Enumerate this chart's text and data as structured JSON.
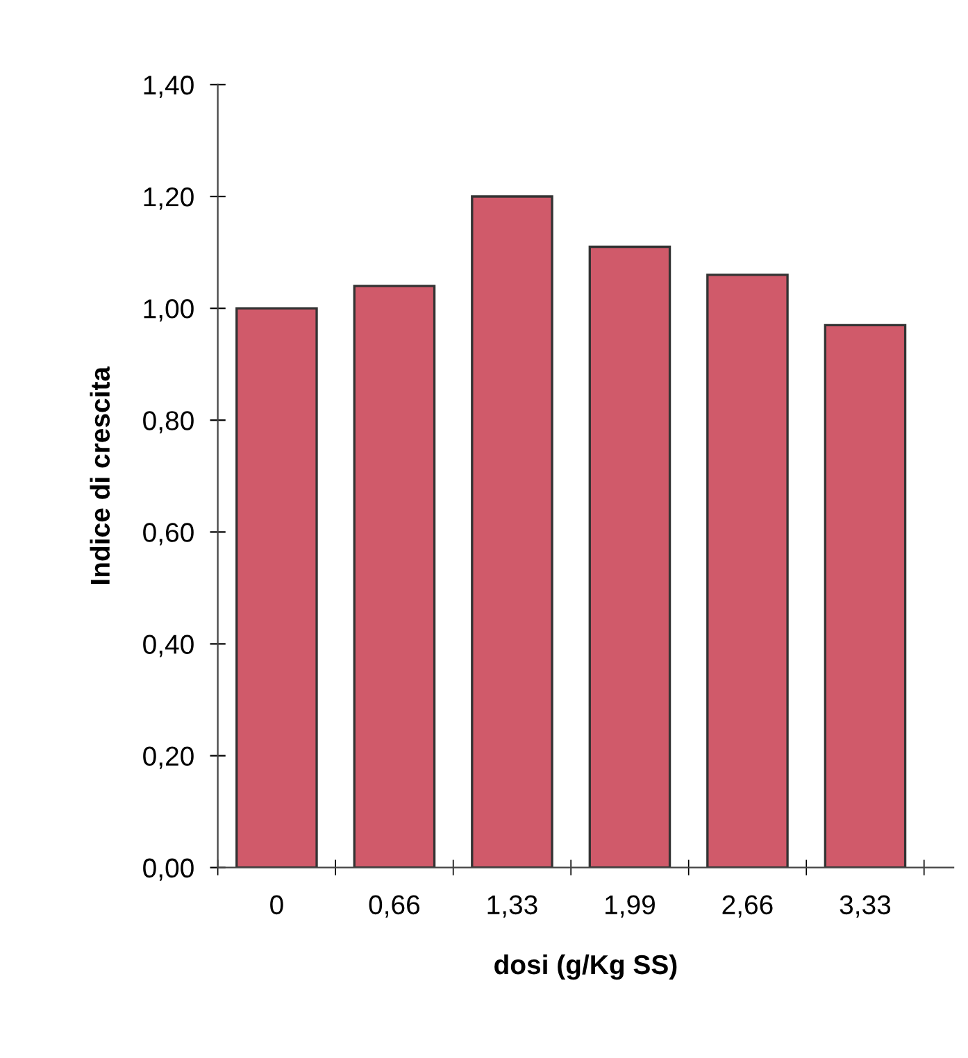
{
  "chart_data": {
    "type": "bar",
    "xlabel": "dosi (g/Kg SS)",
    "ylabel": "Indice di crescita",
    "categories": [
      "0",
      "0,66",
      "1,33",
      "1,99",
      "2,66",
      "3,33"
    ],
    "values": [
      1.0,
      1.04,
      1.2,
      1.11,
      1.06,
      0.97
    ],
    "color": "#d05a6a",
    "ylim": [
      0,
      1.4
    ],
    "yticks": [
      {
        "value": 0,
        "label": "0,00"
      },
      {
        "value": 0.2,
        "label": "0,20"
      },
      {
        "value": 0.4,
        "label": "0,40"
      },
      {
        "value": 0.6,
        "label": "0,60"
      },
      {
        "value": 0.8,
        "label": "0,80"
      },
      {
        "value": 1.0,
        "label": "1,00"
      },
      {
        "value": 1.2,
        "label": "1,20"
      },
      {
        "value": 1.4,
        "label": "1,40"
      }
    ],
    "grid": false,
    "legend": false
  }
}
